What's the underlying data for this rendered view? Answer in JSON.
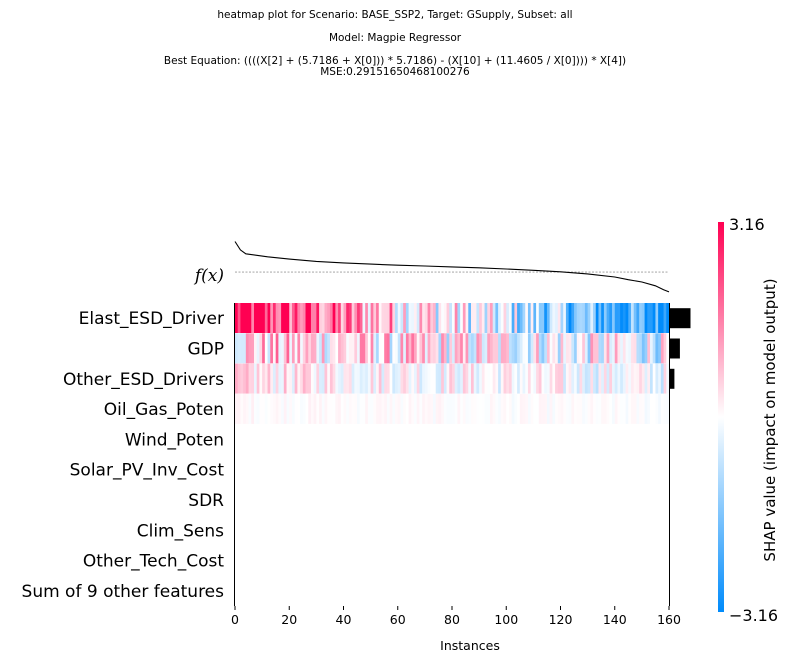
{
  "title": {
    "line1": "heatmap plot for Scenario: BASE_SSP2, Target: GSupply, Subset: all",
    "line2": "Model: Magpie Regressor",
    "line3": "Best Equation: ((((X[2] + (5.7186 + X[0])) * 5.7186) - (X[10] + (11.4605 / X[0]))) * X[4])",
    "line4": "MSE:0.29151650468100276"
  },
  "chart_data": {
    "type": "heatmap",
    "xlabel": "Instances",
    "xticks": [
      0,
      20,
      40,
      60,
      80,
      100,
      120,
      140,
      160
    ],
    "xlim": [
      0,
      160
    ],
    "n_instances": 160,
    "fx_label": "f(x)",
    "features": [
      {
        "name": "Elast_ESD_Driver",
        "importance": 0.93
      },
      {
        "name": "GDP",
        "importance": 0.45
      },
      {
        "name": "Other_ESD_Drivers",
        "importance": 0.2
      },
      {
        "name": "Oil_Gas_Poten",
        "importance": 0.0
      },
      {
        "name": "Wind_Poten",
        "importance": 0.0
      },
      {
        "name": "Solar_PV_Inv_Cost",
        "importance": 0.0
      },
      {
        "name": "SDR",
        "importance": 0.0
      },
      {
        "name": "Clim_Sens",
        "importance": 0.0
      },
      {
        "name": "Other_Tech_Cost",
        "importance": 0.0
      },
      {
        "name": "Sum of 9 other features",
        "importance": 0.0
      }
    ],
    "row_strength": [
      1.0,
      0.6,
      0.3,
      0.06,
      0,
      0,
      0,
      0,
      0,
      0
    ],
    "fx_curve": {
      "instances": [
        0,
        2,
        4,
        8,
        12,
        20,
        30,
        40,
        50,
        60,
        70,
        80,
        90,
        100,
        110,
        120,
        130,
        140,
        145,
        150,
        155,
        158,
        160
      ],
      "values": [
        3.1,
        2.55,
        2.3,
        2.2,
        2.1,
        1.95,
        1.8,
        1.7,
        1.62,
        1.55,
        1.5,
        1.44,
        1.38,
        1.3,
        1.22,
        1.12,
        0.98,
        0.78,
        0.6,
        0.45,
        0.2,
        -0.05,
        -0.2
      ]
    },
    "fx_baseline": 1.1,
    "colorbar": {
      "label": "SHAP value (impact on model output)",
      "max_label": "3.16",
      "min_label": "−3.16",
      "vmin": -3.16,
      "vmax": 3.16,
      "color_positive": "#ff0052",
      "color_negative": "#008bfb",
      "color_mid": "#ffffff"
    }
  }
}
